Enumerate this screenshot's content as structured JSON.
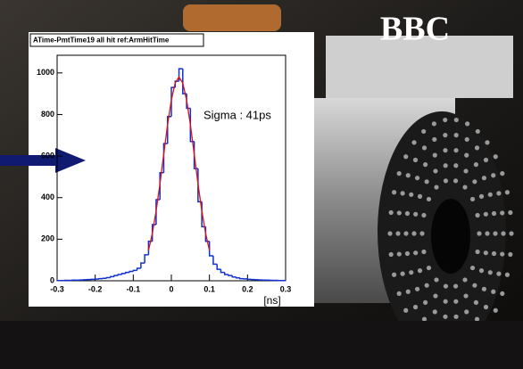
{
  "photo_label": "BBC",
  "chart_data": {
    "type": "histogram",
    "title": "ATime-PmtTime19 all hit  ref:ArmHitTime",
    "x_label": "[ns]",
    "annotation": "Sigma : 41ps",
    "color": "#1030d0",
    "bins": [
      -0.3,
      -0.29,
      -0.28,
      -0.27,
      -0.26,
      -0.25,
      -0.24,
      -0.23,
      -0.22,
      -0.21,
      -0.2,
      -0.19,
      -0.18,
      -0.17,
      -0.16,
      -0.15,
      -0.14,
      -0.13,
      -0.12,
      -0.11,
      -0.1,
      -0.09,
      -0.08,
      -0.07,
      -0.06,
      -0.05,
      -0.04,
      -0.03,
      -0.02,
      -0.01,
      0,
      0.01,
      0.02,
      0.03,
      0.04,
      0.05,
      0.06,
      0.07,
      0.08,
      0.09,
      0.1,
      0.11,
      0.12,
      0.13,
      0.14,
      0.15,
      0.16,
      0.17,
      0.18,
      0.19,
      0.2,
      0.21,
      0.22,
      0.23,
      0.24,
      0.25,
      0.26,
      0.27,
      0.28,
      0.29,
      0.3
    ],
    "values": [
      1,
      1,
      2,
      2,
      3,
      3,
      4,
      5,
      6,
      7,
      8,
      10,
      12,
      15,
      20,
      25,
      30,
      35,
      40,
      45,
      50,
      60,
      85,
      125,
      190,
      270,
      390,
      520,
      660,
      790,
      930,
      960,
      1020,
      900,
      830,
      670,
      540,
      380,
      260,
      190,
      120,
      80,
      55,
      40,
      30,
      25,
      18,
      14,
      10,
      9,
      7,
      6,
      5,
      4,
      3,
      3,
      2,
      2,
      1,
      1
    ],
    "overlay": {
      "type": "line",
      "color": "#e01010",
      "x": [
        -0.06,
        -0.05,
        -0.04,
        -0.03,
        -0.02,
        -0.01,
        0,
        0.01,
        0.02,
        0.03,
        0.04,
        0.05,
        0.06,
        0.07,
        0.08,
        0.09,
        0.1
      ],
      "values": [
        146,
        228,
        336,
        466,
        609,
        750,
        870,
        951,
        980,
        951,
        870,
        750,
        609,
        466,
        336,
        228,
        146
      ]
    },
    "xlim": [
      -0.3,
      0.3
    ],
    "xticks": [
      -0.3,
      -0.2,
      -0.1,
      0,
      0.1,
      0.2,
      0.3
    ],
    "ylim": [
      0,
      1085
    ],
    "yticks": [
      0,
      200,
      400,
      600,
      800,
      1000
    ]
  }
}
